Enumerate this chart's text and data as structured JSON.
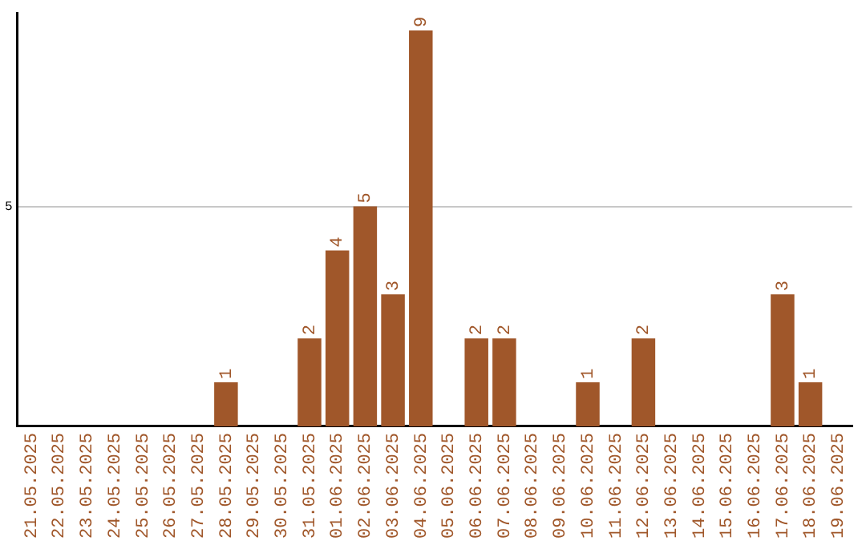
{
  "chart_data": {
    "type": "bar",
    "categories": [
      "21.05.2025",
      "22.05.2025",
      "23.05.2025",
      "24.05.2025",
      "25.05.2025",
      "26.05.2025",
      "27.05.2025",
      "28.05.2025",
      "29.05.2025",
      "30.05.2025",
      "31.05.2025",
      "01.06.2025",
      "02.06.2025",
      "03.06.2025",
      "04.06.2025",
      "05.06.2025",
      "06.06.2025",
      "07.06.2025",
      "08.06.2025",
      "09.06.2025",
      "10.06.2025",
      "11.06.2025",
      "12.06.2025",
      "13.06.2025",
      "14.06.2025",
      "15.06.2025",
      "16.06.2025",
      "17.06.2025",
      "18.06.2025",
      "19.06.2025"
    ],
    "values": [
      0,
      0,
      0,
      0,
      0,
      0,
      0,
      1,
      0,
      0,
      2,
      4,
      5,
      3,
      9,
      0,
      2,
      2,
      0,
      0,
      1,
      0,
      2,
      0,
      0,
      0,
      0,
      3,
      1,
      0
    ],
    "value_labels": [
      null,
      null,
      null,
      null,
      null,
      null,
      null,
      "1",
      null,
      null,
      "2",
      "4",
      "5",
      "3",
      "9",
      null,
      "2",
      "2",
      null,
      null,
      "1",
      null,
      "2",
      null,
      null,
      null,
      null,
      "3",
      "1",
      null
    ],
    "color": "#a0572a",
    "ylim": [
      0,
      9.4
    ],
    "yticks": [
      5
    ],
    "grid": "y"
  }
}
